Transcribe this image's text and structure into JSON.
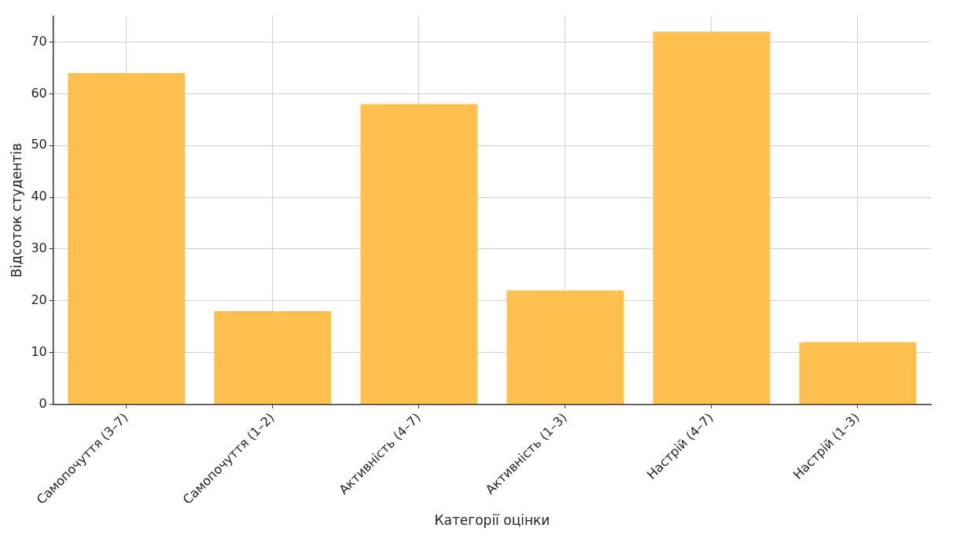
{
  "chart_data": {
    "type": "bar",
    "xlabel": "Категорії оцінки",
    "ylabel": "Відсоток студентів",
    "categories": [
      "Самопочуття (3–7)",
      "Самопочуття (1–2)",
      "Активність (4–7)",
      "Активність (1–3)",
      "Настрій (4–7)",
      "Настрій (1–3)"
    ],
    "values": [
      64,
      18,
      58,
      22,
      72,
      12
    ],
    "color": "#ffc04d",
    "ylim": [
      0,
      75
    ],
    "yticks": [
      0,
      10,
      20,
      30,
      40,
      50,
      60,
      70
    ],
    "grid": true
  }
}
